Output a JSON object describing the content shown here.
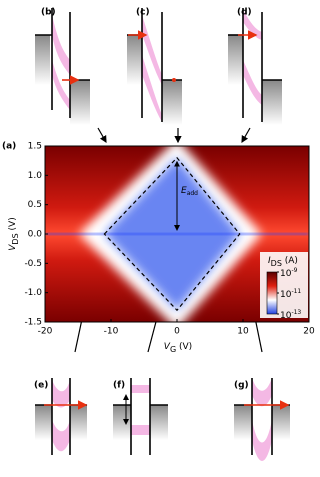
{
  "chart_data": {
    "type": "heatmap",
    "x_label": [
      "V",
      "G",
      " (V)"
    ],
    "y_label": [
      "V",
      "DS",
      " (V)"
    ],
    "xlim": [
      -20,
      20
    ],
    "xticks": [
      -20,
      -10,
      0,
      10,
      20
    ],
    "ylim": [
      -1.5,
      1.5
    ],
    "yticks": [
      -1.5,
      {
        "value": -1,
        "label": "-1.0"
      },
      -0.5,
      {
        "value": 0,
        "label": "0.0"
      },
      0.5,
      {
        "value": 1,
        "label": "1.0"
      },
      1.5
    ],
    "colorbar": {
      "label": [
        "I",
        "DS",
        " (A)"
      ],
      "scale": "log",
      "base": "10",
      "exponents": [
        -9,
        -11,
        -13
      ],
      "colors": [
        "#5a0000",
        "#e02010",
        "#ffffff",
        "#2040e0"
      ]
    },
    "diamond": {
      "x": [
        -11,
        0,
        9.5,
        0
      ],
      "y": [
        0,
        1.3,
        0,
        -1.3
      ]
    },
    "annotation": [
      "E",
      "add"
    ],
    "panel_labels": [
      "(a)",
      "(b)",
      "(c)",
      "(d)",
      "(e)",
      "(f)",
      "(g)"
    ]
  }
}
